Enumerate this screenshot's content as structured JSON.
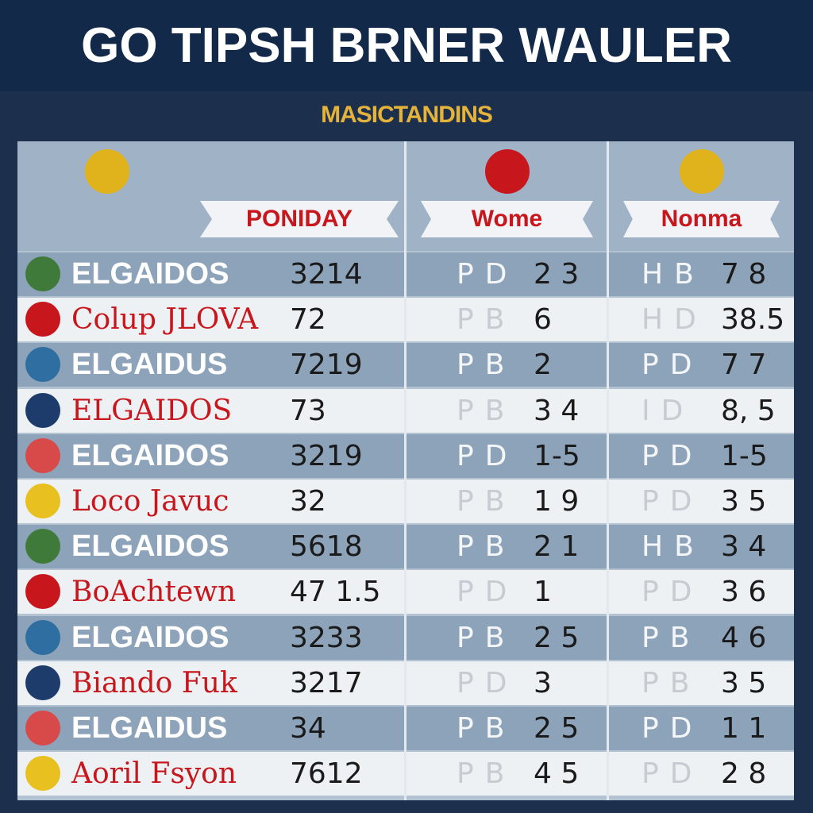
{
  "header": {
    "title": "GO TIPSH BRNER WAULER",
    "subtitle": "MASICTANDINS"
  },
  "table": {
    "columns": [
      "PONIDAY",
      "Wome",
      "Nonma"
    ],
    "rows": [
      {
        "name": "ELGAIDOS",
        "score": "3214",
        "c2": "PD",
        "v2": "2 3",
        "c3": "HB",
        "v3": "7 8"
      },
      {
        "name": "Colup JLOVA",
        "score": "72",
        "c2": "PB",
        "v2": "6",
        "c3": "HD",
        "v3": "38.5"
      },
      {
        "name": "ELGAIDUS",
        "score": "7219",
        "c2": "PB",
        "v2": "2",
        "c3": "PD",
        "v3": "7 7"
      },
      {
        "name": "ELGAIDOS",
        "score": "73",
        "c2": "PB",
        "v2": "3 4",
        "c3": "ID",
        "v3": "8, 5"
      },
      {
        "name": "ELGAIDOS",
        "score": "3219",
        "c2": "PD",
        "v2": "1-5",
        "c3": "PD",
        "v3": "1-5"
      },
      {
        "name": "Loco Javuc",
        "score": "32",
        "c2": "PB",
        "v2": "1 9",
        "c3": "PD",
        "v3": "3 5"
      },
      {
        "name": "ELGAIDOS",
        "score": "5618",
        "c2": "PB",
        "v2": "2 1",
        "c3": "HB",
        "v3": "3 4"
      },
      {
        "name": "BoAchtewn",
        "score": "47 1.5",
        "c2": "PD",
        "v2": "1",
        "c3": "PD",
        "v3": "3 6"
      },
      {
        "name": "ELGAIDOS",
        "score": "3233",
        "c2": "PB",
        "v2": "2 5",
        "c3": "PB",
        "v3": "4 6"
      },
      {
        "name": "Biando Fuk",
        "score": "3217",
        "c2": "PD",
        "v2": "3",
        "c3": "PB",
        "v3": "3 5"
      },
      {
        "name": "ELGAIDUS",
        "score": "34",
        "c2": "PB",
        "v2": "2 5",
        "c3": "PD",
        "v3": "1 1"
      },
      {
        "name": "Aoril Fsyon",
        "score": "7612",
        "c2": "PB",
        "v2": "4 5",
        "c3": "PD",
        "v3": "2 8"
      }
    ]
  }
}
